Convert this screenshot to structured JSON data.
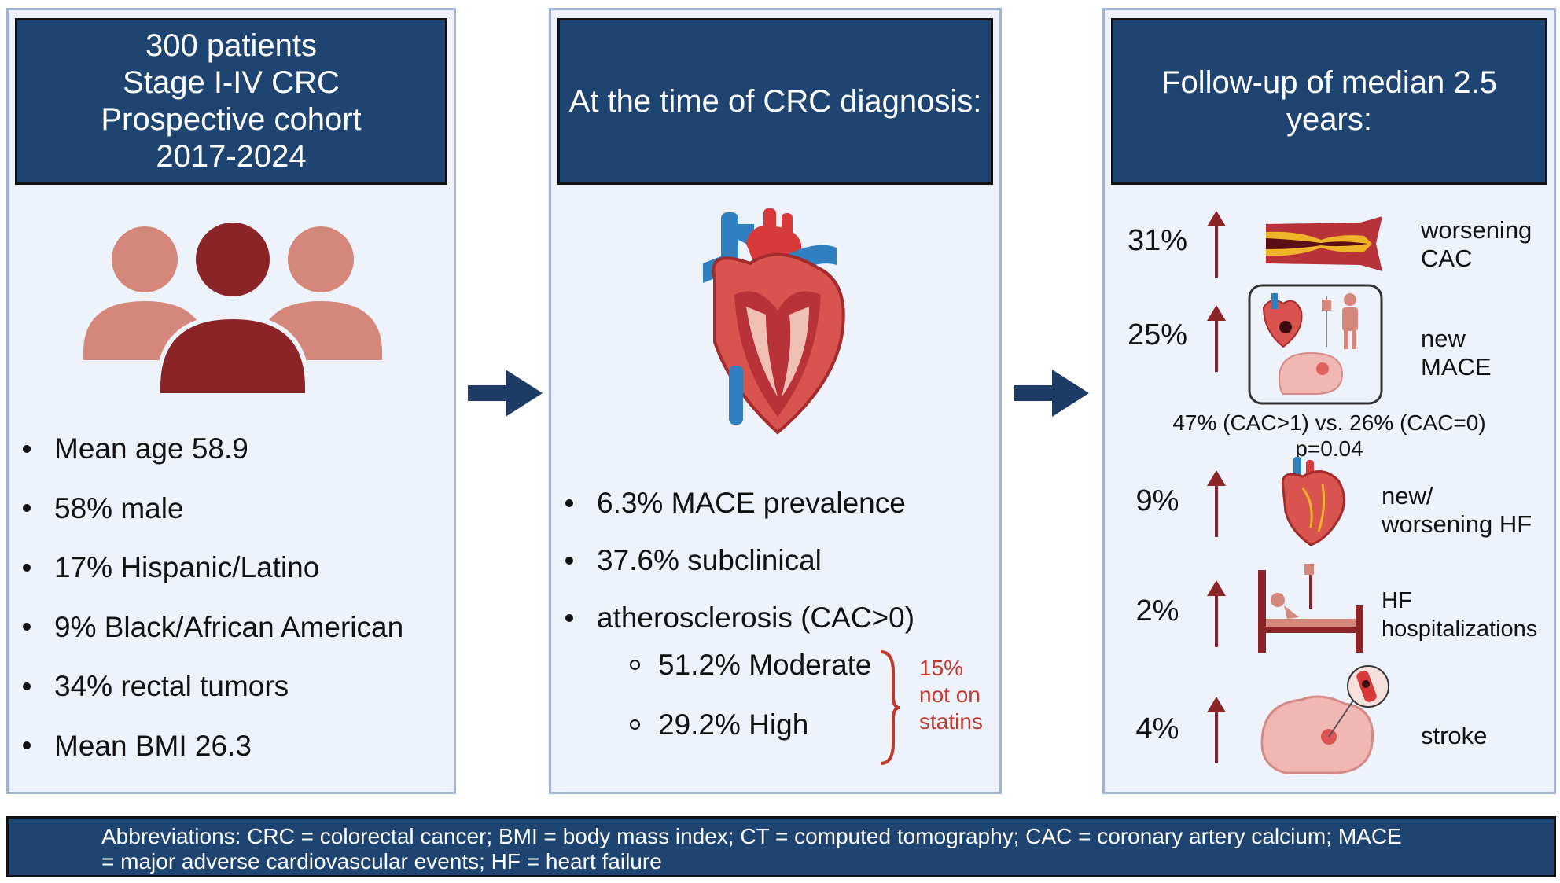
{
  "panel1": {
    "header": [
      "300 patients",
      "Stage I-IV CRC",
      "Prospective cohort",
      "2017-2024"
    ],
    "icon": "people-group-icon",
    "bullets": [
      "Mean age 58.9",
      "58% male",
      "17% Hispanic/Latino",
      "9% Black/African American",
      "34% rectal tumors",
      "Mean BMI 26.3"
    ]
  },
  "panel2": {
    "header": "At the time of CRC diagnosis:",
    "icon": "heart-anatomy-icon",
    "bullets": [
      "6.3% MACE prevalence",
      "37.6% subclinical",
      "atherosclerosis (CAC>0)"
    ],
    "sub_bullets": [
      "51.2% Moderate",
      "29.2% High"
    ],
    "note": [
      "15%",
      "not on",
      "statins"
    ]
  },
  "panel3": {
    "header": [
      "Follow-up of median 2.5",
      "years:"
    ],
    "rows": [
      {
        "pct": "31%",
        "label": [
          "worsening",
          "CAC"
        ],
        "icon": "narrowed-artery-icon"
      },
      {
        "pct": "25%",
        "label": [
          "new",
          "MACE"
        ],
        "icon": "mace-events-icon"
      },
      {
        "pct": "9%",
        "label": [
          "new/",
          "worsening HF"
        ],
        "icon": "heart-failure-icon"
      },
      {
        "pct": "2%",
        "label": [
          "HF",
          "hospitalizations"
        ],
        "icon": "hospital-bed-icon"
      },
      {
        "pct": "4%",
        "label": [
          "stroke"
        ],
        "icon": "brain-stroke-icon"
      }
    ],
    "comparison": [
      "47% (CAC>1) vs. 26% (CAC=0)",
      "p=0.04"
    ]
  },
  "footer": {
    "lines": [
      "Abbreviations: CRC = colorectal cancer; BMI = body mass index; CT = computed tomography; CAC = coronary artery calcium; MACE",
      "= major adverse cardiovascular events; HF = heart failure"
    ]
  },
  "colors": {
    "navy": "#1e4471",
    "panel_bg": "#eef3fb",
    "panel_border": "#9fb3d9",
    "dark_red": "#8b2427",
    "salmon": "#d4877a",
    "note_red": "#c0392b"
  }
}
